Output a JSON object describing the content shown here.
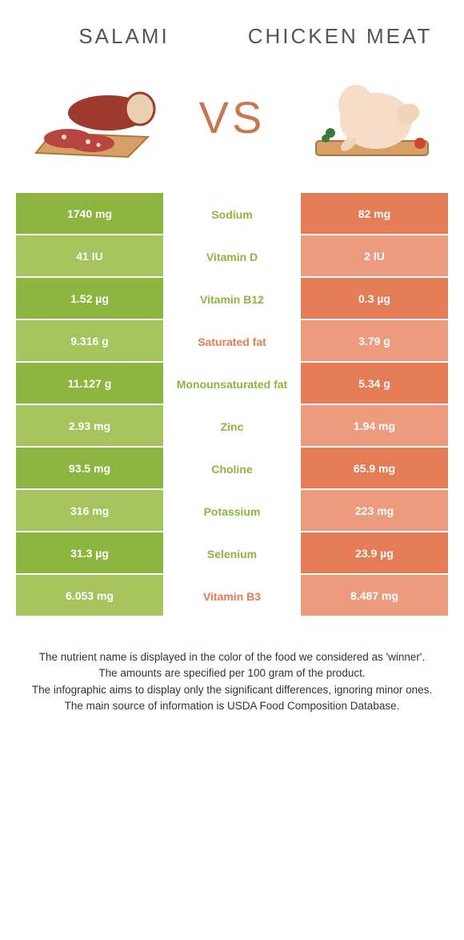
{
  "colors": {
    "salami": "#8eb53f",
    "chicken": "#e47c56",
    "salami_light": "#a5c45e",
    "chicken_light": "#ec9b7f",
    "vs": "#c87850",
    "title": "#555555"
  },
  "header": {
    "left": "SALAMI",
    "right": "CHICKEN MEAT",
    "vs": "VS"
  },
  "rows": [
    {
      "label": "Sodium",
      "left": "1740 mg",
      "right": "82 mg",
      "winner": "salami"
    },
    {
      "label": "Vitamin D",
      "left": "41 IU",
      "right": "2 IU",
      "winner": "salami"
    },
    {
      "label": "Vitamin B12",
      "left": "1.52 µg",
      "right": "0.3 µg",
      "winner": "salami"
    },
    {
      "label": "Saturated fat",
      "left": "9.316 g",
      "right": "3.79 g",
      "winner": "chicken"
    },
    {
      "label": "Monounsaturated fat",
      "left": "11.127 g",
      "right": "5.34 g",
      "winner": "salami"
    },
    {
      "label": "Zinc",
      "left": "2.93 mg",
      "right": "1.94 mg",
      "winner": "salami"
    },
    {
      "label": "Choline",
      "left": "93.5 mg",
      "right": "65.9 mg",
      "winner": "salami"
    },
    {
      "label": "Potassium",
      "left": "316 mg",
      "right": "223 mg",
      "winner": "salami"
    },
    {
      "label": "Selenium",
      "left": "31.3 µg",
      "right": "23.9 µg",
      "winner": "salami"
    },
    {
      "label": "Vitamin B3",
      "left": "6.053 mg",
      "right": "8.487 mg",
      "winner": "chicken"
    }
  ],
  "footer": {
    "line1": "The nutrient name is displayed in the color of the food we considered as 'winner'.",
    "line2": "The amounts are specified per 100 gram of the product.",
    "line3": "The infographic aims to display only the significant differences, ignoring minor ones.",
    "line4": "The main source of information is USDA Food Composition Database."
  }
}
